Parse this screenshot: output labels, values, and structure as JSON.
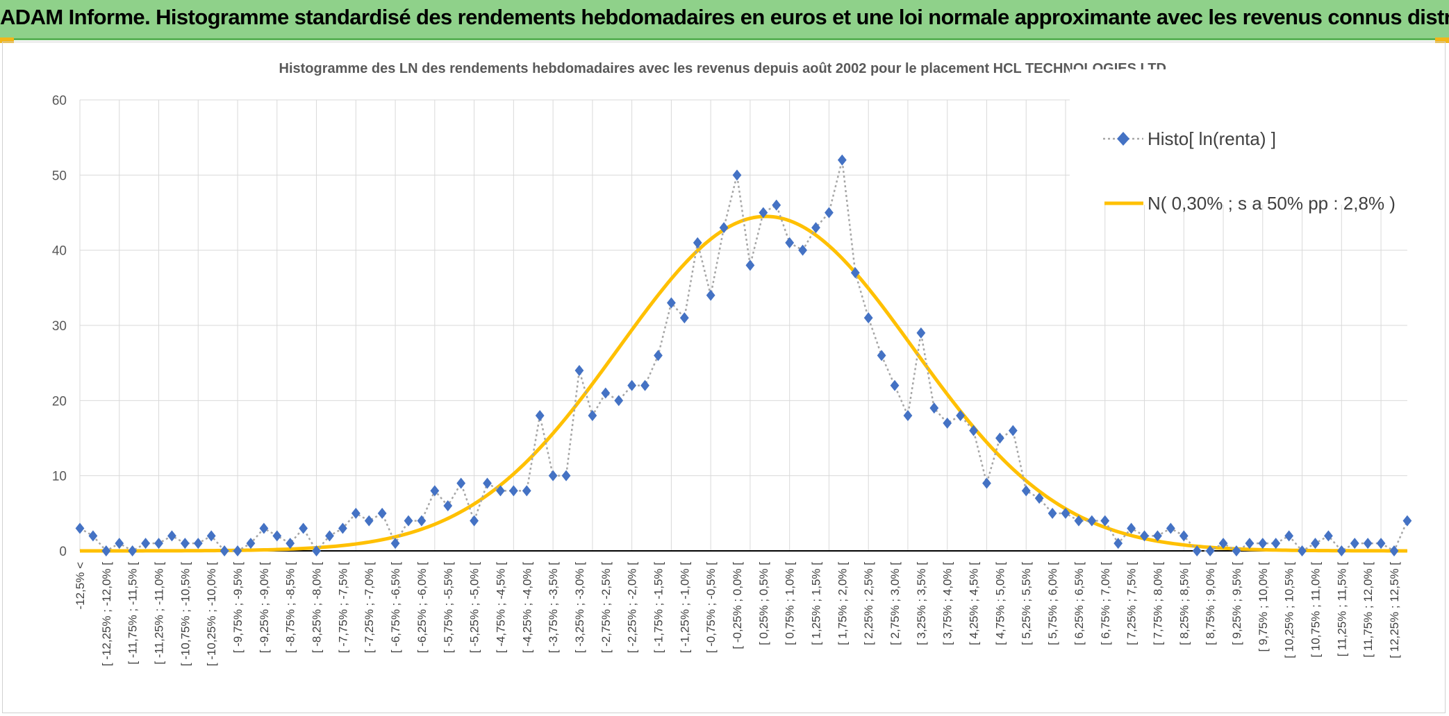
{
  "header": {
    "title": "ADAM Informe. Histogramme standardisé des rendements hebdomadaires en euros et une loi normale approximante avec les revenus connus distribués"
  },
  "colors": {
    "header_bg": "#8fd18a",
    "series_histo": "#4472c4",
    "series_normal": "#ffc000",
    "corner_accent": "#f2b61a"
  },
  "chart_data": {
    "type": "line",
    "title": "Histogramme des LN des rendements hebdomadaires avec les revenus depuis août 2002 pour le placement HCL TECHNOLOGIES LTD.",
    "xlabel": "",
    "ylabel": "",
    "ylim": [
      0,
      60
    ],
    "yticks": [
      0,
      10,
      20,
      30,
      40,
      50,
      60
    ],
    "grid": true,
    "legend_position": "top-right",
    "categories": [
      "-12,5% <",
      "[ -12,5% ; -12,25% [",
      "[ -12,25% ; -12,0% [",
      "[ -12,0% ; -11,75% [",
      "[ -11,75% ; -11,5% [",
      "[ -11,5% ; -11,25% [",
      "[ -11,25% ; -11,0% [",
      "[ -11,0% ; -10,75% [",
      "[ -10,75% ; -10,5% [",
      "[ -10,5% ; -10,25% [",
      "[ -10,25% ; -10,0% [",
      "[ -10,0% ; -9,75% [",
      "[ -9,75% ; -9,5% [",
      "[ -9,5% ; -9,25% [",
      "[ -9,25% ; -9,0% [",
      "[ -9,0% ; -8,75% [",
      "[ -8,75% ; -8,5% [",
      "[ -8,5% ; -8,25% [",
      "[ -8,25% ; -8,0% [",
      "[ -8,0% ; -7,75% [",
      "[ -7,75% ; -7,5% [",
      "[ -7,5% ; -7,25% [",
      "[ -7,25% ; -7,0% [",
      "[ -7,0% ; -6,75% [",
      "[ -6,75% ; -6,5% [",
      "[ -6,5% ; -6,25% [",
      "[ -6,25% ; -6,0% [",
      "[ -6,0% ; -5,75% [",
      "[ -5,75% ; -5,5% [",
      "[ -5,5% ; -5,25% [",
      "[ -5,25% ; -5,0% [",
      "[ -5,0% ; -4,75% [",
      "[ -4,75% ; -4,5% [",
      "[ -4,5% ; -4,25% [",
      "[ -4,25% ; -4,0% [",
      "[ -4,0% ; -3,75% [",
      "[ -3,75% ; -3,5% [",
      "[ -3,5% ; -3,25% [",
      "[ -3,25% ; -3,0% [",
      "[ -3,0% ; -2,75% [",
      "[ -2,75% ; -2,5% [",
      "[ -2,5% ; -2,25% [",
      "[ -2,25% ; -2,0% [",
      "[ -2,0% ; -1,75% [",
      "[ -1,75% ; -1,5% [",
      "[ -1,5% ; -1,25% [",
      "[ -1,25% ; -1,0% [",
      "[ -1,0% ; -0,75% [",
      "[ -0,75% ; -0,5% [",
      "[ -0,5% ; -0,25% [",
      "[ -0,25% ; 0,0% [",
      "[ 0,0% ; 0,25% [",
      "[ 0,25% ; 0,5% [",
      "[ 0,5% ; 0,75% [",
      "[ 0,75% ; 1,0% [",
      "[ 1,0% ; 1,25% [",
      "[ 1,25% ; 1,5% [",
      "[ 1,5% ; 1,75% [",
      "[ 1,75% ; 2,0% [",
      "[ 2,0% ; 2,25% [",
      "[ 2,25% ; 2,5% [",
      "[ 2,5% ; 2,75% [",
      "[ 2,75% ; 3,0% [",
      "[ 3,0% ; 3,25% [",
      "[ 3,25% ; 3,5% [",
      "[ 3,5% ; 3,75% [",
      "[ 3,75% ; 4,0% [",
      "[ 4,0% ; 4,25% [",
      "[ 4,25% ; 4,5% [",
      "[ 4,5% ; 4,75% [",
      "[ 4,75% ; 5,0% [",
      "[ 5,0% ; 5,25% [",
      "[ 5,25% ; 5,5% [",
      "[ 5,5% ; 5,75% [",
      "[ 5,75% ; 6,0% [",
      "[ 6,0% ; 6,25% [",
      "[ 6,25% ; 6,5% [",
      "[ 6,5% ; 6,75% [",
      "[ 6,75% ; 7,0% [",
      "[ 7,0% ; 7,25% [",
      "[ 7,25% ; 7,5% [",
      "[ 7,5% ; 7,75% [",
      "[ 7,75% ; 8,0% [",
      "[ 8,0% ; 8,25% [",
      "[ 8,25% ; 8,5% [",
      "[ 8,5% ; 8,75% [",
      "[ 8,75% ; 9,0% [",
      "[ 9,0% ; 9,25% [",
      "[ 9,25% ; 9,5% [",
      "[ 9,5% ; 9,75% [",
      "[ 9,75% ; 10,0% [",
      "[ 10,0% ; 10,25% [",
      "[ 10,25% ; 10,5% [",
      "[ 10,5% ; 10,75% [",
      "[ 10,75% ; 11,0% [",
      "[ 11,0% ; 11,25% [",
      "[ 11,25% ; 11,5% [",
      "[ 11,5% ; 11,75% [",
      "[ 11,75% ; 12,0% [",
      "[ 12,0% ; 12,25% [",
      "[ 12,25% ; 12,5% [",
      "12,5% >"
    ],
    "series": [
      {
        "name": "Histo[ ln(renta) ]",
        "style": "dotted-line-diamond-markers",
        "values": [
          3,
          2,
          0,
          1,
          0,
          1,
          1,
          2,
          1,
          1,
          2,
          0,
          0,
          1,
          3,
          2,
          1,
          3,
          0,
          2,
          3,
          5,
          4,
          5,
          1,
          4,
          4,
          8,
          6,
          9,
          4,
          9,
          8,
          8,
          8,
          18,
          10,
          10,
          24,
          18,
          21,
          20,
          22,
          22,
          26,
          33,
          31,
          41,
          34,
          43,
          50,
          38,
          45,
          46,
          41,
          40,
          43,
          45,
          52,
          37,
          31,
          26,
          22,
          18,
          29,
          19,
          17,
          18,
          16,
          9,
          15,
          16,
          8,
          7,
          5,
          5,
          4,
          4,
          4,
          1,
          3,
          2,
          2,
          3,
          2,
          0,
          0,
          1,
          0,
          1,
          1,
          1,
          2,
          0,
          1,
          2,
          0,
          1,
          1,
          1,
          0,
          4
        ]
      },
      {
        "name": "N( 0,30% ; s a 50% pp : 2,8% )",
        "style": "smooth-line",
        "mean_bin_index": 52.2,
        "sd_bins": 11.2,
        "peak": 44.5
      }
    ]
  }
}
